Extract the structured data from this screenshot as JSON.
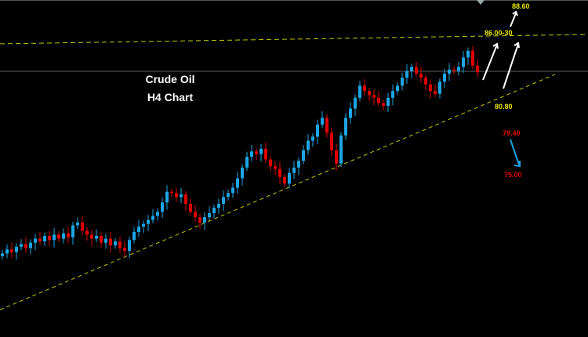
{
  "chart_data": {
    "type": "candlestick",
    "title": "Crude Oil",
    "subtitle": "H4 Chart",
    "closes": [
      69.8,
      70.1,
      69.9,
      70.3,
      70.5,
      70.2,
      70.6,
      70.9,
      70.7,
      71.1,
      70.8,
      71.2,
      70.9,
      71.3,
      71.0,
      71.9,
      72.1,
      71.5,
      71.2,
      70.9,
      71.1,
      70.6,
      70.9,
      70.4,
      70.7,
      70.2,
      70.0,
      70.8,
      71.4,
      71.8,
      72.0,
      72.3,
      72.6,
      72.9,
      73.6,
      74.4,
      74.3,
      74.0,
      74.2,
      73.5,
      72.9,
      72.5,
      72.1,
      72.5,
      72.8,
      73.2,
      73.5,
      74.0,
      74.3,
      74.7,
      75.4,
      76.2,
      77.0,
      77.4,
      77.2,
      77.6,
      76.8,
      76.3,
      76.1,
      75.5,
      75.0,
      75.8,
      76.2,
      76.7,
      77.5,
      78.2,
      78.5,
      79.4,
      79.9,
      78.8,
      77.5,
      76.5,
      78.6,
      79.9,
      80.6,
      81.4,
      82.3,
      81.9,
      81.6,
      81.4,
      81.0,
      80.8,
      81.4,
      81.9,
      82.3,
      82.9,
      83.4,
      83.7,
      83.2,
      82.9,
      82.4,
      81.9,
      81.7,
      82.6,
      83.2,
      83.5,
      83.4,
      83.7,
      84.4,
      84.9,
      83.8,
      83.3
    ],
    "first_open": 69.6,
    "current_price": 83.37,
    "resistance_line": {
      "start": 85.42,
      "end": 86.12,
      "label": "86.00-30"
    },
    "trendline": {
      "points": [
        [
          -0.5,
          65.6
        ],
        [
          117.5,
          83.14
        ]
      ]
    },
    "annotations": [
      {
        "text": "88.60",
        "color": "yellow"
      },
      {
        "text": "86.00-30",
        "color": "yellow"
      },
      {
        "text": "80.80",
        "color": "yellow"
      },
      {
        "text": "79.40",
        "color": "red"
      },
      {
        "text": "75.00",
        "color": "red"
      }
    ],
    "grid": false
  },
  "colors": {
    "bull": "#1ca6e6",
    "bear": "#e00000",
    "level_line": "#c8c800",
    "price_line": "#5a5f66"
  }
}
